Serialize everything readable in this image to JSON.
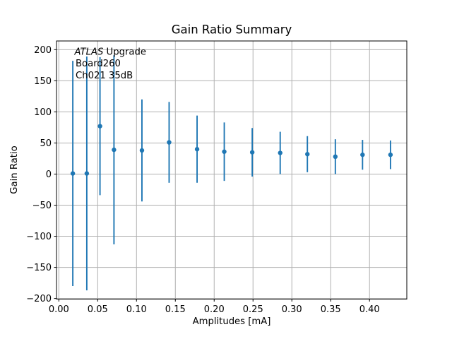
{
  "chart_data": {
    "type": "scatter",
    "subtype": "errorbar",
    "title": "Gain Ratio Summary",
    "xlabel": "Amplitudes [mA]",
    "ylabel": "Gain Ratio",
    "annotation": {
      "line1_italic": "ATLAS",
      "line1_rest": " Upgrade",
      "line2": "Board260",
      "line3": "Ch021 35dB"
    },
    "x": [
      0.018,
      0.036,
      0.053,
      0.071,
      0.107,
      0.142,
      0.178,
      0.213,
      0.249,
      0.285,
      0.32,
      0.356,
      0.391,
      0.427
    ],
    "y": [
      1,
      1,
      77,
      39,
      38,
      51,
      40,
      36,
      35,
      34,
      32,
      28,
      31,
      31
    ],
    "yerr": [
      181,
      188,
      111,
      152,
      82,
      65,
      54,
      47,
      39,
      34,
      29,
      28,
      24,
      23
    ],
    "xlim": [
      -0.003,
      0.448
    ],
    "ylim": [
      -201,
      214
    ],
    "xticks": [
      0.0,
      0.05,
      0.1,
      0.15,
      0.2,
      0.25,
      0.3,
      0.35,
      0.4
    ],
    "xtick_labels": [
      "0.00",
      "0.05",
      "0.10",
      "0.15",
      "0.20",
      "0.25",
      "0.30",
      "0.35",
      "0.40"
    ],
    "yticks": [
      -200,
      -150,
      -100,
      -50,
      0,
      50,
      100,
      150,
      200
    ],
    "ytick_labels": [
      "−200",
      "−150",
      "−100",
      "−50",
      "0",
      "50",
      "100",
      "150",
      "200"
    ],
    "grid": true,
    "legend": null,
    "series_color": "#1f77b4",
    "grid_color": "#b0b0b0",
    "spine_color": "#000000",
    "marker": "circle"
  }
}
